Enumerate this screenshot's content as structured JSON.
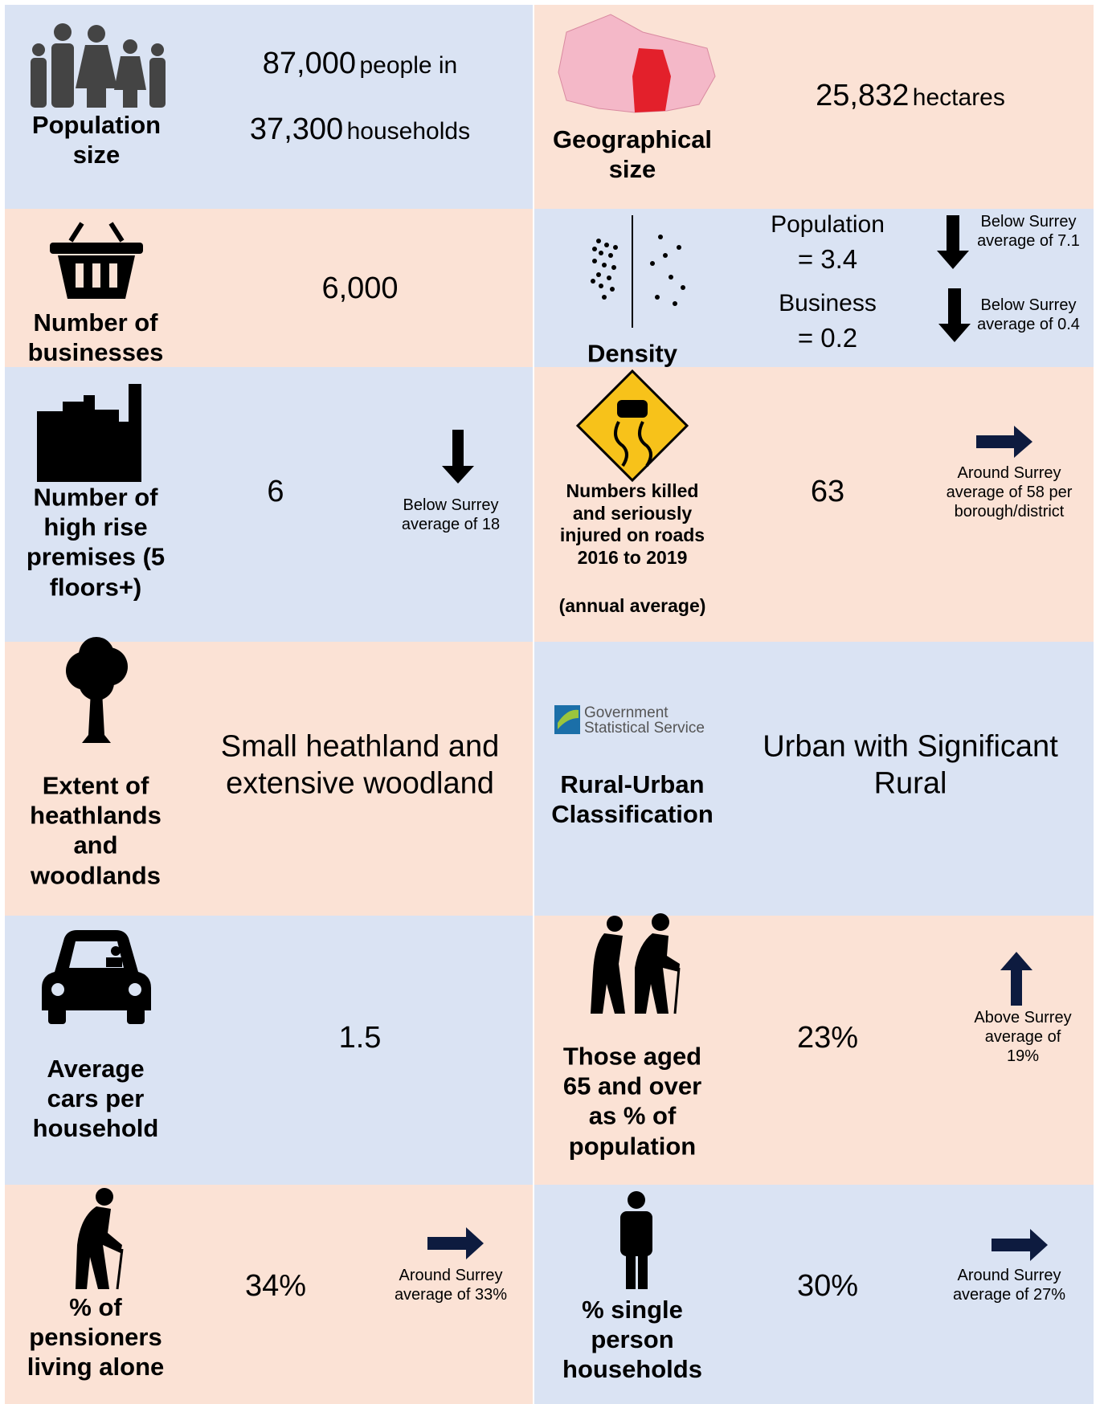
{
  "cells": {
    "population": {
      "label": "Population size",
      "value1": "87,000",
      "unit1": "people in",
      "value2": "37,300",
      "unit2": "households"
    },
    "geographical": {
      "label": "Geographical size",
      "value": "25,832",
      "unit": "hectares"
    },
    "businesses": {
      "label": "Number of businesses",
      "value": "6,000"
    },
    "density": {
      "label": "Density",
      "population_label": "Population",
      "population_value": "= 3.4",
      "business_label": "Business",
      "business_value": "= 0.2",
      "population_note": "Below Surrey average of 7.1",
      "business_note": "Below Surrey average of 0.4"
    },
    "high_rise": {
      "label": "Number of high rise premises (5 floors+)",
      "value": "6",
      "note": "Below Surrey average of 18"
    },
    "roads": {
      "label": "Numbers killed and seriously injured on roads 2016 to 2019",
      "sublabel": "(annual average)",
      "value": "63",
      "note": "Around Surrey average of 58 per borough/district"
    },
    "heathlands": {
      "label": "Extent of heathlands and woodlands",
      "value": "Small heathland and extensive woodland"
    },
    "rural_urban": {
      "logo": "Government Statistical Service",
      "label": "Rural-Urban Classification",
      "value": "Urban with Significant Rural"
    },
    "cars": {
      "label": "Average cars per household",
      "value": "1.5"
    },
    "aged_65": {
      "label": "Those aged 65 and over as % of population",
      "value": "23%",
      "note": "Above Surrey average of 19%"
    },
    "pensioners_alone": {
      "label": "% of pensioners living alone",
      "value": "34%",
      "note": "Around Surrey average of 33%"
    },
    "single_person": {
      "label": "% single person households",
      "value": "30%",
      "note": "Around Surrey average of 27%"
    }
  }
}
